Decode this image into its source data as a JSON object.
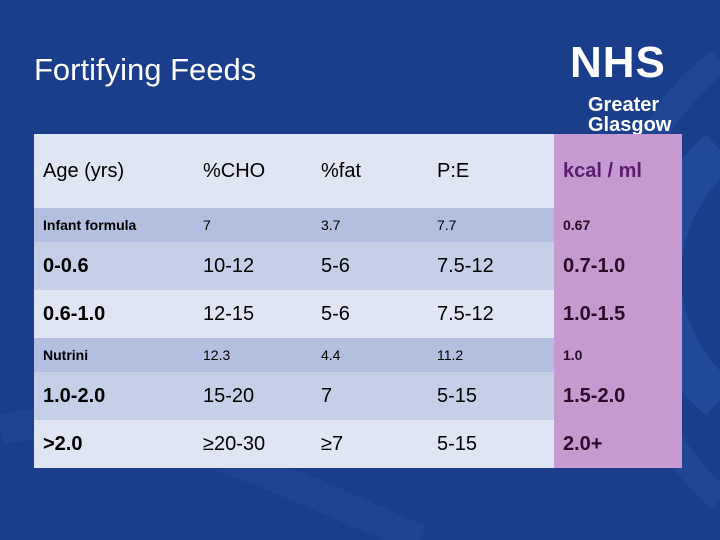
{
  "slide": {
    "title": "Fortifying Feeds"
  },
  "logo": {
    "brand": "NHS",
    "line1": "Greater",
    "line2": "Glasgow"
  },
  "table": {
    "headers": [
      "Age (yrs)",
      "%CHO",
      "%fat",
      "P:E",
      "kcal / ml"
    ],
    "rows": [
      [
        "Infant formula",
        "7",
        "3.7",
        "7.7",
        "0.67"
      ],
      [
        "0-0.6",
        "10-12",
        "5-6",
        "7.5-12",
        "0.7-1.0"
      ],
      [
        "0.6-1.0",
        "12-15",
        "5-6",
        "7.5-12",
        "1.0-1.5"
      ],
      [
        "Nutrini",
        "12.3",
        "4.4",
        "11.2",
        "1.0"
      ],
      [
        "1.0-2.0",
        "15-20",
        "7",
        "5-15",
        "1.5-2.0"
      ],
      [
        ">2.0",
        "≥20-30",
        "≥7",
        "5-15",
        "2.0+"
      ]
    ]
  },
  "colors": {
    "background": "#1a3e8c",
    "kcal_column": "#c69ad0"
  }
}
